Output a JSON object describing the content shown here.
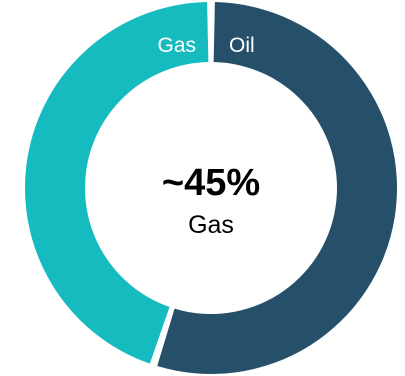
{
  "chart_data": {
    "type": "pie",
    "style": "donut",
    "slices": [
      {
        "label": "Oil",
        "value": 55,
        "color": "#26506A"
      },
      {
        "label": "Gas",
        "value": 45,
        "color": "#16BBBF"
      }
    ],
    "center_value": "~45%",
    "center_caption": "Gas"
  }
}
